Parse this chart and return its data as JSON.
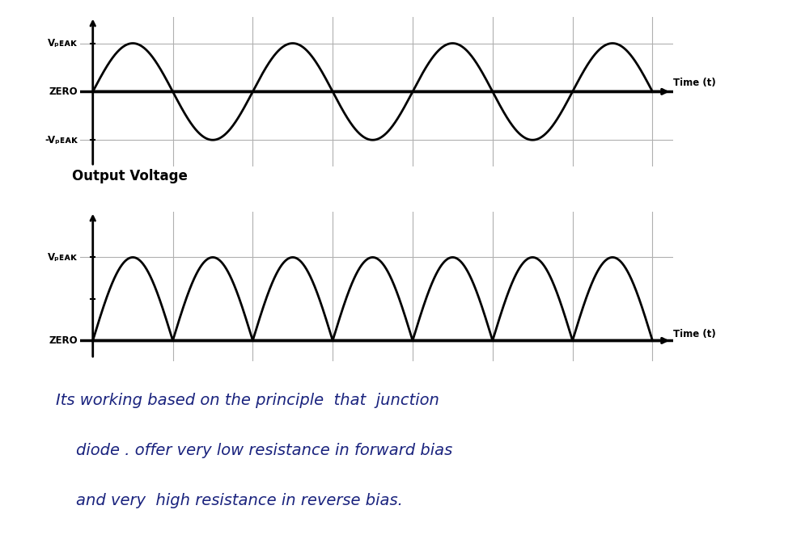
{
  "fig_width": 9.9,
  "fig_height": 6.88,
  "dpi": 100,
  "bg_color": "#ffffff",
  "top_plot": {
    "vpeak_label": "Vₚᴇᴀᴋ",
    "zero_label": "ZERO",
    "neg_vpeak_label": "-Vₚᴇᴀᴋ",
    "xlabel": "Time (t)",
    "num_cycles": 3.5,
    "amplitude": 1.0
  },
  "bottom_plot": {
    "title": "Output Voltage",
    "vpeak_label": "Vₚᴇᴀᴋ",
    "zero_label": "ZERO",
    "xlabel": "Time (t)",
    "num_cycles": 3.5,
    "amplitude": 1.0
  },
  "text_lines": [
    "Its working based on the principle  that  junction",
    "    diode . offer very low resistance in forward bias",
    "    and very  high resistance in reverse bias."
  ],
  "text_color": "#1a237e",
  "line_color": "#000000",
  "grid_color": "#b0b0b0",
  "label_fontsize": 8.5,
  "title_fontsize": 12,
  "text_fontsize": 14
}
